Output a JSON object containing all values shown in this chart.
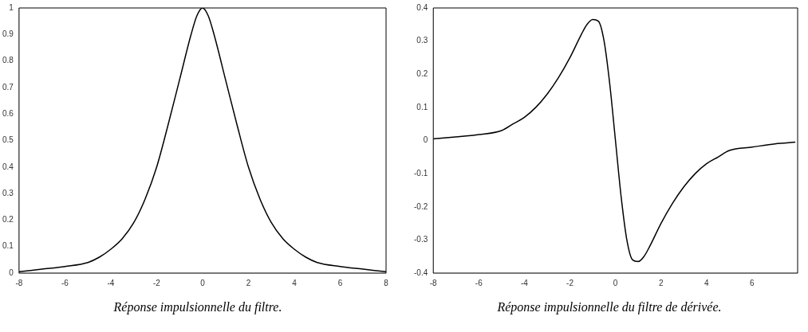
{
  "chart_data": [
    {
      "type": "line",
      "annotations": [
        "Réponse impulsionnelle du filtre."
      ],
      "xlim": [
        -8,
        8
      ],
      "xticks": [
        -8,
        -6,
        -4,
        -2,
        0,
        2,
        4,
        6,
        8
      ],
      "ylim": [
        0,
        1
      ],
      "yticks": [
        0,
        0.1,
        0.2,
        0.3,
        0.4,
        0.5,
        0.6,
        0.7,
        0.8,
        0.9,
        1
      ],
      "grid": false,
      "legend": false,
      "series": [
        {
          "color": "#000000",
          "x": [
            -8,
            -7,
            -6,
            -5,
            -4.5,
            -4,
            -3.5,
            -3,
            -2.5,
            -2,
            -1.5,
            -1,
            -0.5,
            -0.25,
            0,
            0.25,
            0.5,
            1,
            1.5,
            2,
            2.5,
            3,
            3.5,
            4,
            4.5,
            5,
            6,
            7,
            8
          ],
          "values": [
            0.005,
            0.015,
            0.025,
            0.04,
            0.06,
            0.09,
            0.13,
            0.19,
            0.28,
            0.4,
            0.56,
            0.73,
            0.9,
            0.97,
            1,
            0.97,
            0.9,
            0.73,
            0.56,
            0.4,
            0.28,
            0.19,
            0.13,
            0.09,
            0.06,
            0.04,
            0.025,
            0.015,
            0.005
          ]
        }
      ]
    },
    {
      "type": "line",
      "annotations": [
        "Réponse impulsionnelle du filtre de dérivée."
      ],
      "xlim": [
        -8,
        8
      ],
      "xticks": [
        -8,
        -6,
        -4,
        -2,
        0,
        2,
        4,
        6
      ],
      "ylim": [
        -0.4,
        0.4
      ],
      "yticks": [
        -0.4,
        -0.3,
        -0.2,
        -0.1,
        0,
        0.1,
        0.2,
        0.3,
        0.4
      ],
      "grid": false,
      "legend": false,
      "series": [
        {
          "color": "#000000",
          "x": [
            -8,
            -6,
            -5,
            -4.5,
            -4,
            -3.5,
            -3,
            -2.5,
            -2,
            -1.5,
            -1.25,
            -1,
            -0.75,
            -0.5,
            -0.25,
            0,
            0.25,
            0.5,
            0.75,
            1,
            1.25,
            1.5,
            2,
            2.5,
            3,
            3.5,
            4,
            4.5,
            5,
            6,
            7,
            7.9
          ],
          "values": [
            0.005,
            0.018,
            0.03,
            0.05,
            0.07,
            0.1,
            0.14,
            0.19,
            0.25,
            0.32,
            0.35,
            0.365,
            0.36,
            0.3,
            0.17,
            0,
            -0.17,
            -0.3,
            -0.36,
            -0.365,
            -0.35,
            -0.32,
            -0.25,
            -0.19,
            -0.14,
            -0.1,
            -0.07,
            -0.05,
            -0.03,
            -0.02,
            -0.01,
            -0.005
          ]
        }
      ]
    }
  ]
}
